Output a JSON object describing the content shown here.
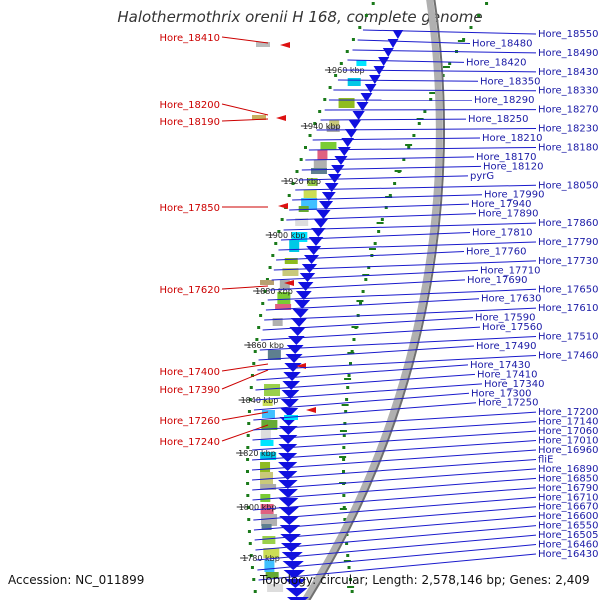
{
  "title": "Halothermothrix orenii H 168, complete genome",
  "footer": {
    "accession": "Accession: NC_011899",
    "stats": "Topology: circular; Length: 2,578,146 bp; Genes: 2,409"
  },
  "colors": {
    "forward_strand": "#1010e0",
    "reverse_label": "#cc0000",
    "forward_label": "#1a1aa6",
    "gc_skew": "#1a7a1a"
  },
  "reverse_strand_genes": [
    "Hore_18410",
    "Hore_18200",
    "Hore_18190",
    "Hore_17850",
    "Hore_17620",
    "Hore_17400",
    "Hore_17390",
    "Hore_17260",
    "Hore_17240"
  ],
  "forward_strand_genes": [
    "Hore_18550",
    "Hore_18480",
    "Hore_18490",
    "Hore_18420",
    "Hore_18430",
    "Hore_18350",
    "Hore_18330",
    "Hore_18290",
    "Hore_18270",
    "Hore_18250",
    "Hore_18230",
    "Hore_18210",
    "Hore_18180",
    "Hore_18170",
    "Hore_18120",
    "pyrG",
    "Hore_18050",
    "Hore_17990",
    "Hore_17940",
    "Hore_17890",
    "Hore_17860",
    "Hore_17810",
    "Hore_17790",
    "Hore_17760",
    "Hore_17730",
    "Hore_17710",
    "Hore_17690",
    "Hore_17650",
    "Hore_17630",
    "Hore_17610",
    "Hore_17590",
    "Hore_17560",
    "Hore_17510",
    "Hore_17490",
    "Hore_17460",
    "Hore_17430",
    "Hore_17410",
    "Hore_17340",
    "Hore_17300",
    "Hore_17250",
    "Hore_17200",
    "Hore_17140",
    "Hore_17060",
    "Hore_17010",
    "Hore_16960",
    "fliE",
    "Hore_16890",
    "Hore_16850",
    "Hore_16790",
    "Hore_16710",
    "Hore_16670",
    "Hore_16600",
    "Hore_16550",
    "Hore_16505",
    "Hore_16460",
    "Hore_16430"
  ],
  "scale_ticks": [
    "1960 kbp",
    "1940 kbp",
    "1920 kbp",
    "1900 kbp",
    "1880 kbp",
    "1860 kbp",
    "1840 kbp",
    "1820 kbp",
    "1800 kbp",
    "1780 kbp"
  ]
}
